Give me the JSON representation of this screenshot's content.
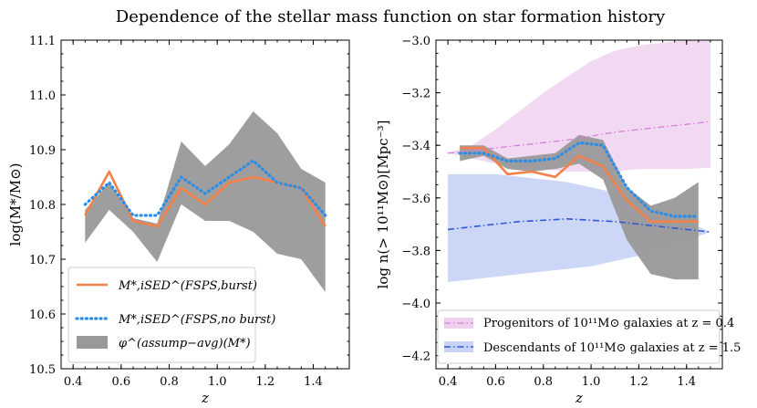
{
  "title": "Dependence of the stellar mass function on star formation history",
  "chart_data": [
    {
      "type": "line",
      "xlabel": "z",
      "ylabel": "log(M*/M⊙)",
      "xlim": [
        0.35,
        1.55
      ],
      "ylim": [
        10.5,
        11.1
      ],
      "xticks": [
        "0.4",
        "0.6",
        "0.8",
        "1.0",
        "1.2",
        "1.4"
      ],
      "yticks": [
        "10.5",
        "10.6",
        "10.7",
        "10.8",
        "10.9",
        "11.0",
        "11.1"
      ],
      "grid": false,
      "legend_position": "lower-left",
      "x": [
        0.45,
        0.55,
        0.65,
        0.75,
        0.85,
        0.95,
        1.05,
        1.15,
        1.25,
        1.35,
        1.45
      ],
      "band": {
        "name": "φ^(assump−avg)(M*)",
        "color": "#999999",
        "lower": [
          10.73,
          10.79,
          10.75,
          10.695,
          10.8,
          10.77,
          10.77,
          10.75,
          10.71,
          10.7,
          10.64
        ],
        "upper": [
          10.79,
          10.84,
          10.775,
          10.765,
          10.915,
          10.87,
          10.91,
          10.97,
          10.93,
          10.865,
          10.84
        ]
      },
      "series": [
        {
          "name": "M*,iSED^(FSPS,burst)",
          "style": "solid",
          "color": "#f4804a",
          "values": [
            10.78,
            10.86,
            10.77,
            10.76,
            10.83,
            10.8,
            10.84,
            10.85,
            10.84,
            10.83,
            10.76
          ]
        },
        {
          "name": "M*,iSED^(FSPS,no burst)",
          "style": "dotted",
          "color": "#2b8de8",
          "values": [
            10.8,
            10.84,
            10.78,
            10.78,
            10.85,
            10.82,
            10.85,
            10.88,
            10.84,
            10.83,
            10.78
          ]
        }
      ]
    },
    {
      "type": "line",
      "xlabel": "z",
      "ylabel": "log n(> 10¹¹M⊙)[Mpc⁻³]",
      "xlim": [
        0.35,
        1.55
      ],
      "ylim": [
        -4.25,
        -3.0
      ],
      "xticks": [
        "0.4",
        "0.6",
        "0.8",
        "1.0",
        "1.2",
        "1.4"
      ],
      "yticks": [
        "−4.2",
        "−4.0",
        "−3.8",
        "−3.6",
        "−3.4",
        "−3.2",
        "−3.0"
      ],
      "grid": false,
      "legend_position": "lower-right",
      "progenitors": {
        "label": "Progenitors of 10¹¹M⊙ galaxies at z = 0.4",
        "color": "#d87fd8",
        "fill": "#eed0ee",
        "x": [
          0.4,
          0.5,
          0.6,
          0.7,
          0.8,
          0.9,
          1.0,
          1.1,
          1.2,
          1.3,
          1.4,
          1.5
        ],
        "values": [
          -3.43,
          -3.42,
          -3.41,
          -3.4,
          -3.39,
          -3.38,
          -3.365,
          -3.35,
          -3.34,
          -3.33,
          -3.32,
          -3.31
        ],
        "upper": [
          -3.43,
          -3.4,
          -3.34,
          -3.27,
          -3.2,
          -3.14,
          -3.08,
          -3.04,
          -3.02,
          -3.01,
          -3.0,
          -3.0
        ],
        "lower": [
          -3.43,
          -3.45,
          -3.47,
          -3.48,
          -3.49,
          -3.5,
          -3.5,
          -3.5,
          -3.49,
          -3.49,
          -3.49,
          -3.485
        ]
      },
      "descendants": {
        "label": "Descendants of 10¹¹M⊙ galaxies at z = 1.5",
        "color": "#3158d8",
        "fill": "#c9d4f5",
        "x": [
          0.4,
          0.5,
          0.6,
          0.7,
          0.8,
          0.9,
          1.0,
          1.1,
          1.2,
          1.3,
          1.4,
          1.5
        ],
        "values": [
          -3.72,
          -3.71,
          -3.7,
          -3.69,
          -3.685,
          -3.68,
          -3.685,
          -3.69,
          -3.7,
          -3.71,
          -3.72,
          -3.73
        ],
        "upper": [
          -3.51,
          -3.51,
          -3.51,
          -3.52,
          -3.53,
          -3.54,
          -3.56,
          -3.58,
          -3.61,
          -3.65,
          -3.69,
          -3.73
        ],
        "lower": [
          -3.92,
          -3.91,
          -3.9,
          -3.89,
          -3.88,
          -3.87,
          -3.86,
          -3.84,
          -3.82,
          -3.79,
          -3.76,
          -3.73
        ]
      },
      "x": [
        0.45,
        0.55,
        0.65,
        0.75,
        0.85,
        0.95,
        1.05,
        1.15,
        1.25,
        1.35,
        1.45
      ],
      "band": {
        "color": "#999999",
        "lower": [
          -3.46,
          -3.44,
          -3.49,
          -3.5,
          -3.49,
          -3.47,
          -3.53,
          -3.76,
          -3.89,
          -3.91,
          -3.91
        ],
        "upper": [
          -3.4,
          -3.4,
          -3.45,
          -3.44,
          -3.43,
          -3.36,
          -3.38,
          -3.56,
          -3.63,
          -3.6,
          -3.54
        ]
      },
      "series": [
        {
          "style": "solid",
          "color": "#f4804a",
          "values": [
            -3.41,
            -3.41,
            -3.51,
            -3.5,
            -3.52,
            -3.44,
            -3.48,
            -3.61,
            -3.69,
            -3.69,
            -3.69
          ]
        },
        {
          "style": "dotted",
          "color": "#2b8de8",
          "values": [
            -3.43,
            -3.43,
            -3.46,
            -3.46,
            -3.45,
            -3.39,
            -3.4,
            -3.56,
            -3.65,
            -3.67,
            -3.67
          ]
        }
      ]
    }
  ]
}
